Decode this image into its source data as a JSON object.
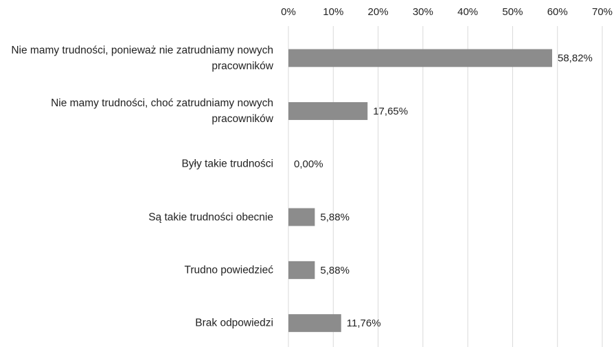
{
  "chart_data": {
    "type": "barh",
    "categories": [
      "Nie mamy trudności, ponieważ nie zatrudniamy nowych pracowników",
      "Nie mamy trudności, choć zatrudniamy nowych pracowników",
      "Były takie trudności",
      "Są takie trudności obecnie",
      "Trudno powiedzieć",
      "Brak odpowiedzi"
    ],
    "values": [
      58.82,
      17.65,
      0,
      5.88,
      5.88,
      11.76
    ],
    "value_labels": [
      "58,82%",
      "17,65%",
      "0,00%",
      "5,88%",
      "5,88%",
      "11,76%"
    ],
    "color": "#8c8c8c",
    "xlim": [
      0,
      70
    ],
    "xticks": [
      {
        "value": 0,
        "label": "0%"
      },
      {
        "value": 10,
        "label": "10%"
      },
      {
        "value": 20,
        "label": "20%"
      },
      {
        "value": 30,
        "label": "30%"
      },
      {
        "value": 40,
        "label": "40%"
      },
      {
        "value": 50,
        "label": "50%"
      },
      {
        "value": 60,
        "label": "60%"
      },
      {
        "value": 70,
        "label": "70%"
      }
    ],
    "grid": true
  }
}
